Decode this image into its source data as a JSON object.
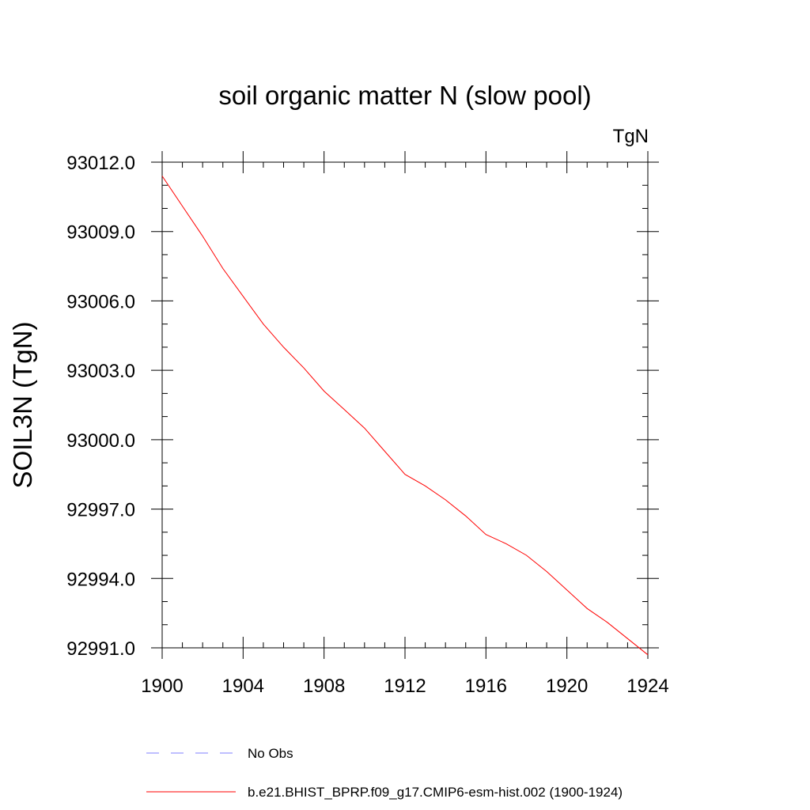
{
  "chart_data": {
    "type": "line",
    "title": "soil organic matter N (slow pool)",
    "units_label": "TgN",
    "ylabel": "SOIL3N  (TgN)",
    "xlabel": "",
    "xlim": [
      1900,
      1924
    ],
    "ylim": [
      92991.0,
      93012.0
    ],
    "x_ticks": [
      1900,
      1904,
      1908,
      1912,
      1916,
      1920,
      1924
    ],
    "x_tick_labels": [
      "1900",
      "1904",
      "1908",
      "1912",
      "1916",
      "1920",
      "1924"
    ],
    "y_ticks": [
      92991.0,
      92994.0,
      92997.0,
      93000.0,
      93003.0,
      93006.0,
      93009.0,
      93012.0
    ],
    "y_tick_labels": [
      "92991.0",
      "92994.0",
      "92997.0",
      "93000.0",
      "93003.0",
      "93006.0",
      "93009.0",
      "93012.0"
    ],
    "grid": false,
    "legend_placement": "bottom",
    "series": [
      {
        "name": "b.e21.BHIST_BPRP.f09_g17.CMIP6-esm-hist.002 (1900-1924)",
        "color": "#ff0000",
        "style": "solid",
        "x": [
          1900,
          1901,
          1902,
          1903,
          1904,
          1905,
          1906,
          1907,
          1908,
          1909,
          1910,
          1911,
          1912,
          1913,
          1914,
          1915,
          1916,
          1917,
          1918,
          1919,
          1920,
          1921,
          1922,
          1923,
          1924
        ],
        "values": [
          93011.4,
          93010.1,
          93008.8,
          93007.4,
          93006.2,
          93005.0,
          93004.0,
          93003.1,
          93002.1,
          93001.3,
          93000.5,
          92999.5,
          92998.5,
          92998.0,
          92997.4,
          92996.7,
          92995.9,
          92995.5,
          92995.0,
          92994.3,
          92993.5,
          92992.7,
          92992.1,
          92991.4,
          92990.7
        ]
      }
    ],
    "legend": [
      {
        "label": "No Obs",
        "color": "#7f7fff",
        "style": "dashed"
      },
      {
        "label": "b.e21.BHIST_BPRP.f09_g17.CMIP6-esm-hist.002 (1900-1924)",
        "color": "#ff0000",
        "style": "solid"
      }
    ]
  }
}
